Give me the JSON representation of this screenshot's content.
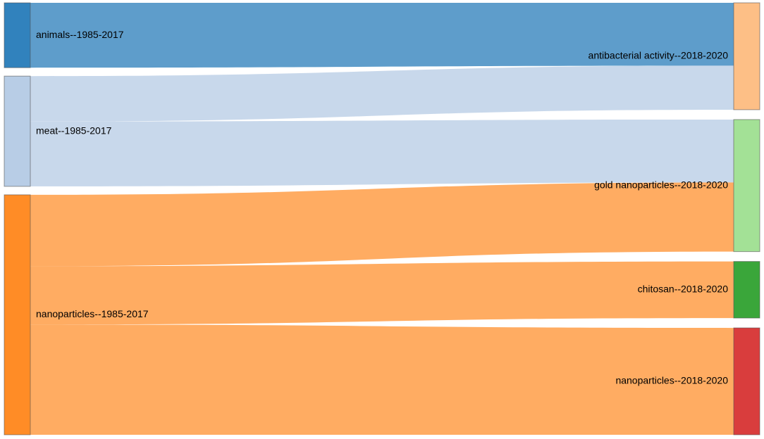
{
  "chart_data": {
    "type": "sankey",
    "sources": [
      {
        "id": "animals",
        "label": "animals--1985-2017",
        "color": "#3182bd",
        "value": 1
      },
      {
        "id": "meat",
        "label": "meat--1985-2017",
        "color": "#b8cde6",
        "value": 1.7
      },
      {
        "id": "nano_old",
        "label": "nanoparticles--1985-2017",
        "color": "#ff8c26",
        "value": 3.7
      }
    ],
    "targets": [
      {
        "id": "antibacterial",
        "label": "antibacterial activity--2018-2020",
        "color": "#fdbf86",
        "value": 1.7
      },
      {
        "id": "gold",
        "label": "gold nanoparticles--2018-2020",
        "color": "#a3e196",
        "value": 2.1
      },
      {
        "id": "chitosan",
        "label": "chitosan--2018-2020",
        "color": "#3aa63a",
        "value": 0.9
      },
      {
        "id": "nano_new",
        "label": "nanoparticles--2018-2020",
        "color": "#d93d3d",
        "value": 1.7
      }
    ],
    "links": [
      {
        "source": "animals",
        "target": "antibacterial",
        "value": 1,
        "color": "#3182bd"
      },
      {
        "source": "meat",
        "target": "antibacterial",
        "value": 0.7,
        "color": "#b8cde6"
      },
      {
        "source": "meat",
        "target": "gold",
        "value": 1,
        "color": "#b8cde6"
      },
      {
        "source": "nano_old",
        "target": "gold",
        "value": 1.1,
        "color": "#ff8c26"
      },
      {
        "source": "nano_old",
        "target": "chitosan",
        "value": 0.9,
        "color": "#ff8c26"
      },
      {
        "source": "nano_old",
        "target": "nano_new",
        "value": 1.7,
        "color": "#ff8c26"
      }
    ]
  }
}
